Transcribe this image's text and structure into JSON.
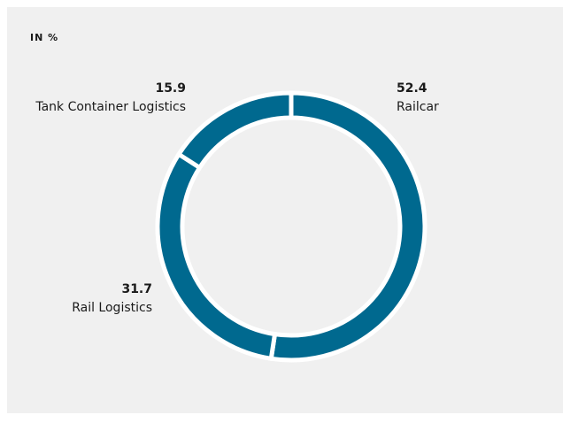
{
  "chart_data": {
    "type": "pie",
    "subtitle": "IN %",
    "categories": [
      "Railcar",
      "Rail Logistics",
      "Tank Container Logistics"
    ],
    "values": [
      52.4,
      31.7,
      15.9
    ],
    "color": "#00698f"
  }
}
